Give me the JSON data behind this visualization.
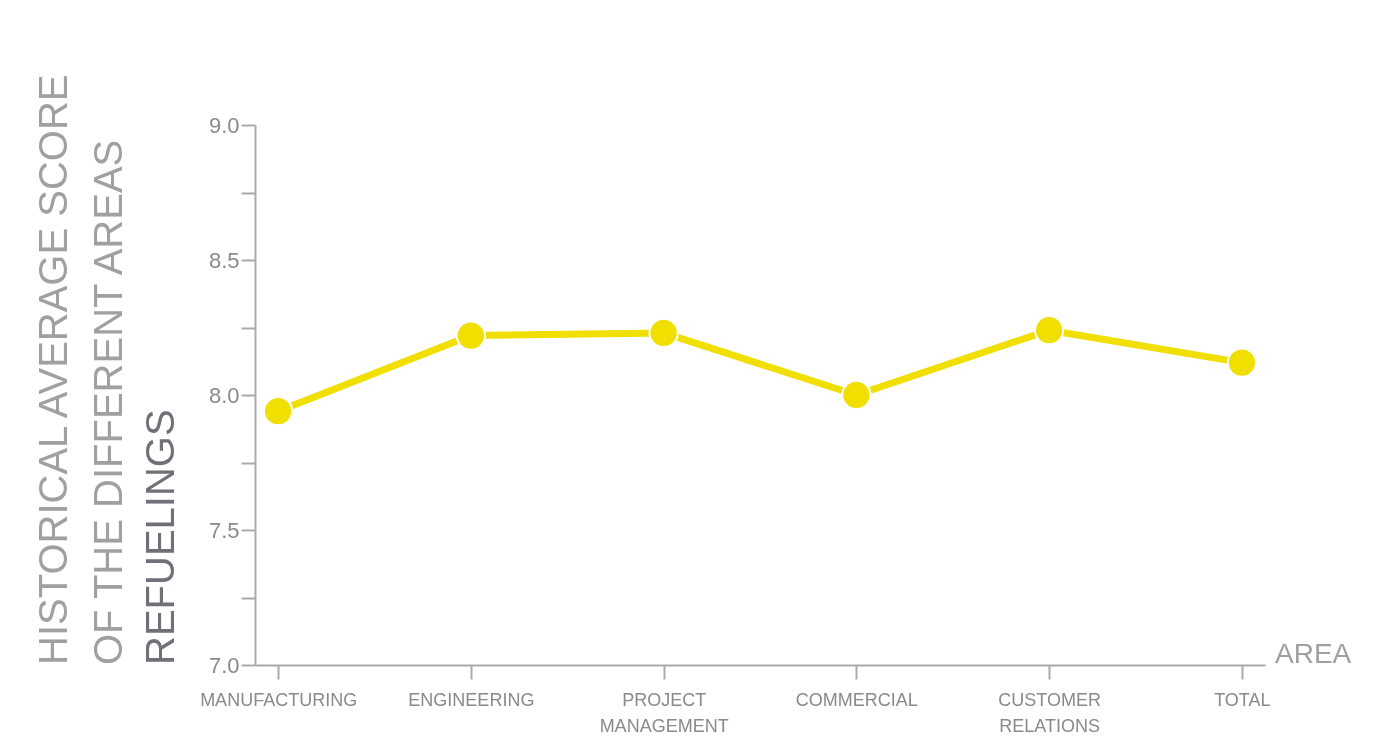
{
  "chart_data": {
    "type": "line",
    "title": "REFUELINGS",
    "ylabel": "HISTORICAL AVERAGE SCORE\nOF THE DIFFERENT AREAS",
    "xlabel": "AREA",
    "categories": [
      "MANUFACTURING",
      "ENGINEERING",
      "PROJECT MANAGEMENT",
      "COMMERCIAL",
      "CUSTOMER RELATIONS",
      "TOTAL"
    ],
    "series": [
      {
        "color": "#f0df00",
        "values": [
          7.94,
          8.22,
          8.23,
          8.0,
          8.24,
          8.12
        ]
      }
    ],
    "ylim": [
      7.0,
      9.0
    ],
    "yticks": [
      {
        "value": 7.0,
        "label": "7.0"
      },
      {
        "value": 7.25,
        "label": null
      },
      {
        "value": 7.5,
        "label": "7.5"
      },
      {
        "value": 7.75,
        "label": null
      },
      {
        "value": 8.0,
        "label": "8.0"
      },
      {
        "value": 8.25,
        "label": null
      },
      {
        "value": 8.5,
        "label": "8.5"
      },
      {
        "value": 8.75,
        "label": null
      },
      {
        "value": 9.0,
        "label": "9.0"
      }
    ],
    "marker": "circle",
    "line_style": "solid",
    "grid": false
  }
}
